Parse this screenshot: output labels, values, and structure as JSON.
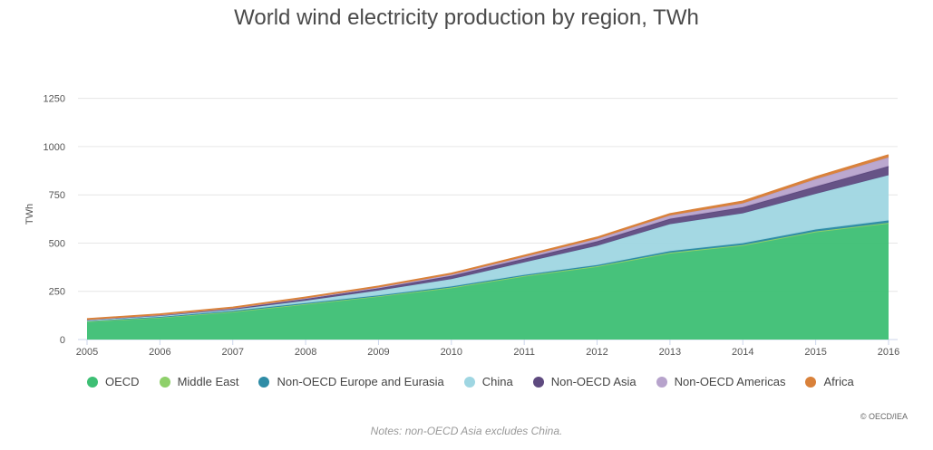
{
  "chart_data": {
    "type": "area",
    "stacked": true,
    "title": "World wind electricity production by region, TWh",
    "xlabel": "",
    "ylabel": "TWh",
    "x": [
      "2005",
      "2006",
      "2007",
      "2008",
      "2009",
      "2010",
      "2011",
      "2012",
      "2013",
      "2014",
      "2015",
      "2016"
    ],
    "ylim": [
      0,
      1300
    ],
    "yticks": [
      "0",
      "250",
      "500",
      "750",
      "1000",
      "1250"
    ],
    "series": [
      {
        "name": "OECD",
        "color": "#3dbf74",
        "values": [
          95,
          115,
          145,
          185,
          225,
          270,
          330,
          380,
          450,
          490,
          560,
          605
        ]
      },
      {
        "name": "Middle East",
        "color": "#8ed06a",
        "values": [
          0,
          0,
          0,
          0,
          0,
          0,
          0,
          0,
          0,
          0,
          0,
          0
        ]
      },
      {
        "name": "Non-OECD Europe and Eurasia",
        "color": "#2e8ca6",
        "values": [
          3,
          3,
          4,
          4,
          4,
          5,
          5,
          6,
          8,
          9,
          10,
          12
        ]
      },
      {
        "name": "China",
        "color": "#9fd6e2",
        "values": [
          2,
          4,
          6,
          12,
          25,
          38,
          65,
          100,
          140,
          155,
          185,
          235
        ]
      },
      {
        "name": "Non-OECD Asia",
        "color": "#5e4a7f",
        "values": [
          4,
          5,
          7,
          10,
          12,
          17,
          19,
          23,
          28,
          32,
          38,
          47
        ]
      },
      {
        "name": "Non-OECD Americas",
        "color": "#b7a3cc",
        "values": [
          1,
          2,
          2,
          4,
          5,
          7,
          10,
          13,
          17,
          20,
          38,
          45
        ]
      },
      {
        "name": "Africa",
        "color": "#d9813a",
        "values": [
          1,
          2,
          2,
          3,
          4,
          5,
          6,
          7,
          8,
          10,
          11,
          12
        ]
      }
    ]
  },
  "credit": "© OECD/IEA",
  "note": "Notes: non-OECD Asia excludes China."
}
